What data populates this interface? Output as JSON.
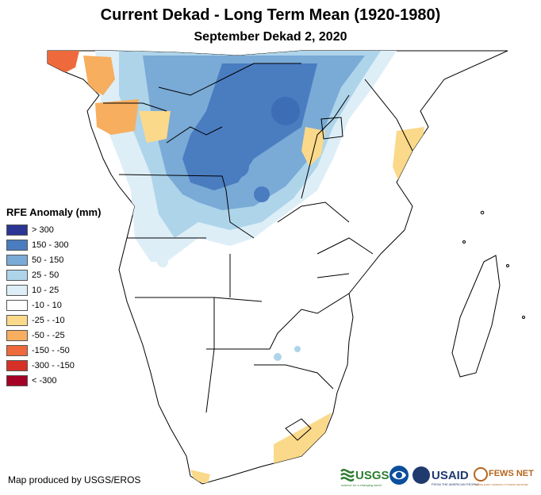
{
  "title": "Current Dekad - Long Term Mean (1920-1980)",
  "subtitle": "September Dekad 2, 2020",
  "legend": {
    "title": "RFE Anomaly (mm)",
    "items": [
      {
        "label": "> 300",
        "color": "#2b3594"
      },
      {
        "label": "150 - 300",
        "color": "#4a7cc0"
      },
      {
        "label": "50 - 150",
        "color": "#7aaad6"
      },
      {
        "label": "25 - 50",
        "color": "#aed4ea"
      },
      {
        "label": "10 - 25",
        "color": "#ddeef7"
      },
      {
        "label": "-10 - 10",
        "color": "#ffffff"
      },
      {
        "label": "-25 - -10",
        "color": "#fbd98a"
      },
      {
        "label": "-50 - -25",
        "color": "#f7ae5f"
      },
      {
        "label": "-150 - -50",
        "color": "#ee6a3c"
      },
      {
        "label": "-300 - -150",
        "color": "#d73027"
      },
      {
        "label": "< -300",
        "color": "#a50026"
      }
    ]
  },
  "credit": "Map produced by USGS/EROS",
  "logos": {
    "usgs": "USGS",
    "usgs_tagline": "science for a changing world",
    "usaid": "USAID",
    "usaid_tagline": "FROM THE AMERICAN PEOPLE",
    "fewsnet": "FEWS NET",
    "fewsnet_tagline": "FAMINE EARLY WARNING SYSTEMS NETWORK"
  }
}
